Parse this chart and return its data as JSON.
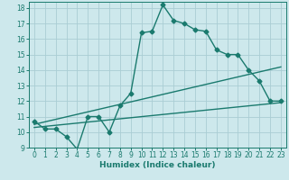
{
  "title": "",
  "xlabel": "Humidex (Indice chaleur)",
  "bg_color": "#cde8ec",
  "line_color": "#1a7a6e",
  "grid_color": "#aacdd4",
  "xlim": [
    -0.5,
    23.5
  ],
  "ylim": [
    9,
    18.4
  ],
  "xticks": [
    0,
    1,
    2,
    3,
    4,
    5,
    6,
    7,
    8,
    9,
    10,
    11,
    12,
    13,
    14,
    15,
    16,
    17,
    18,
    19,
    20,
    21,
    22,
    23
  ],
  "yticks": [
    9,
    10,
    11,
    12,
    13,
    14,
    15,
    16,
    17,
    18
  ],
  "line1_x": [
    0,
    1,
    2,
    3,
    4,
    5,
    6,
    7,
    8,
    9,
    10,
    11,
    12,
    13,
    14,
    15,
    16,
    17,
    18,
    19,
    20,
    21,
    22,
    23
  ],
  "line1_y": [
    10.7,
    10.2,
    10.2,
    9.7,
    8.9,
    11.0,
    11.0,
    10.0,
    11.7,
    12.5,
    16.4,
    16.5,
    18.2,
    17.2,
    17.0,
    16.6,
    16.5,
    15.3,
    15.0,
    15.0,
    14.0,
    13.3,
    12.0,
    12.0
  ],
  "line2_x": [
    0,
    23
  ],
  "line2_y": [
    10.5,
    14.2
  ],
  "line3_x": [
    0,
    23
  ],
  "line3_y": [
    10.3,
    11.9
  ],
  "marker_size": 2.5,
  "linewidth": 1.0,
  "xlabel_fontsize": 6.5,
  "tick_fontsize": 5.5
}
